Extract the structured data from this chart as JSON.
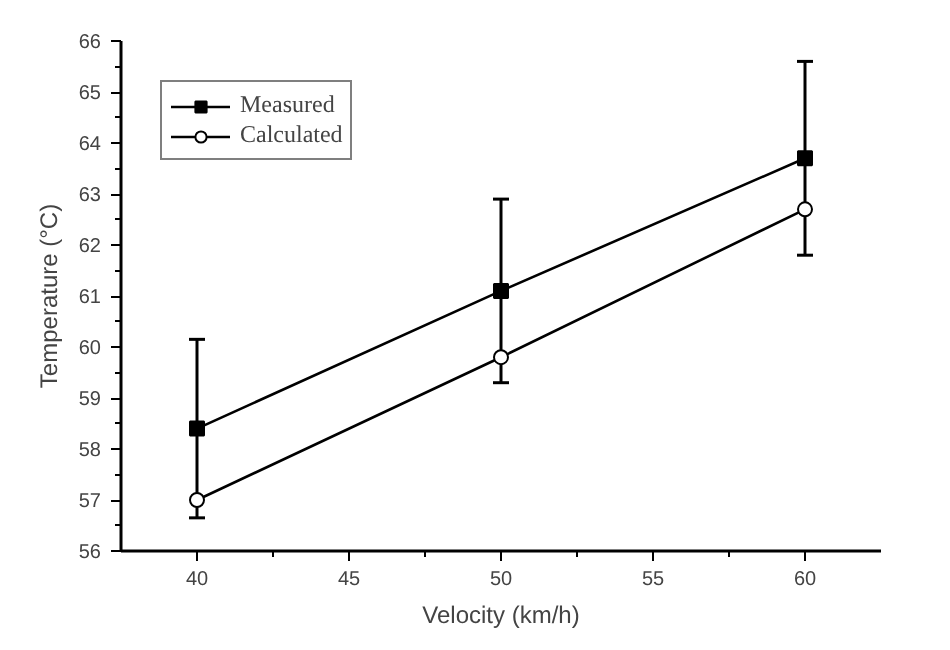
{
  "chart_data": {
    "type": "line",
    "xlabel": "Velocity (km/h)",
    "ylabel": "Temperature (°C)",
    "x": [
      40,
      50,
      60
    ],
    "series": [
      {
        "name": "Measured",
        "color": "#000000",
        "marker": "square",
        "values": [
          58.4,
          61.1,
          63.7
        ],
        "errors": [
          1.75,
          1.8,
          1.9
        ]
      },
      {
        "name": "Calculated",
        "color": "#000000",
        "marker": "circle",
        "values": [
          57.0,
          59.8,
          62.7
        ]
      }
    ],
    "xlim": [
      37.5,
      62.5
    ],
    "xticks": [
      40,
      45,
      50,
      55,
      60
    ],
    "ylim": [
      56,
      66
    ],
    "yticks": [
      56,
      57,
      58,
      59,
      60,
      61,
      62,
      63,
      64,
      65,
      66
    ],
    "grid": false,
    "legend": "top left",
    "line_style": "solid"
  }
}
